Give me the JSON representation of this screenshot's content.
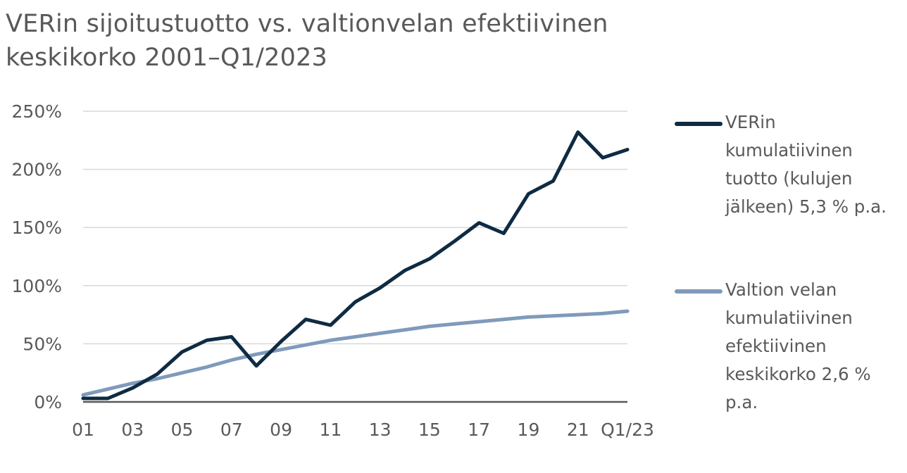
{
  "title_lines": [
    "VERin sijoitustuotto vs. valtionvelan efektiivinen",
    "keskikorko 2001–Q1/2023"
  ],
  "chart_data": {
    "type": "line",
    "title": "VERin sijoitustuotto vs. valtionvelan efektiivinen keskikorko 2001–Q1/2023",
    "xlabel": "",
    "ylabel": "",
    "ylim": [
      0,
      250
    ],
    "y_ticks": [
      0,
      50,
      100,
      150,
      200,
      250
    ],
    "y_tick_labels": [
      "0%",
      "50%",
      "100%",
      "150%",
      "200%",
      "250%"
    ],
    "x_tick_labels": [
      "01",
      "03",
      "05",
      "07",
      "09",
      "11",
      "13",
      "15",
      "17",
      "19",
      "21",
      "Q1/23"
    ],
    "grid": true,
    "legend_position": "right",
    "x": [
      "01",
      "02",
      "03",
      "04",
      "05",
      "06",
      "07",
      "08",
      "09",
      "10",
      "11",
      "12",
      "13",
      "14",
      "15",
      "16",
      "17",
      "18",
      "19",
      "20",
      "21",
      "22",
      "Q1/23"
    ],
    "series": [
      {
        "name": "VERin kumulatiivinen tuotto (kulujen jälkeen) 5,3 % p.a.",
        "color": "#0f2b42",
        "values": [
          3,
          3,
          12,
          24,
          43,
          53,
          56,
          31,
          52,
          71,
          66,
          86,
          98,
          113,
          123,
          138,
          154,
          145,
          179,
          190,
          232,
          210,
          217
        ]
      },
      {
        "name": "Valtion velan kumulatiivinen efektiivinen keskikorko 2,6 % p.a.",
        "color": "#7f9abb",
        "values": [
          6,
          11,
          16,
          20,
          25,
          30,
          36,
          41,
          45,
          49,
          53,
          56,
          59,
          62,
          65,
          67,
          69,
          71,
          73,
          74,
          75,
          76,
          78
        ]
      }
    ]
  },
  "legend": [
    {
      "label": "VERin\nkumulatiivinen\ntuotto (kulujen\njälkeen) 5,3 % p.a.",
      "color": "#0f2b42"
    },
    {
      "label": "Valtion velan\nkumulatiivinen\nefektiivinen\nkeskikorko 2,6 %\np.a.",
      "color": "#7f9abb"
    }
  ]
}
